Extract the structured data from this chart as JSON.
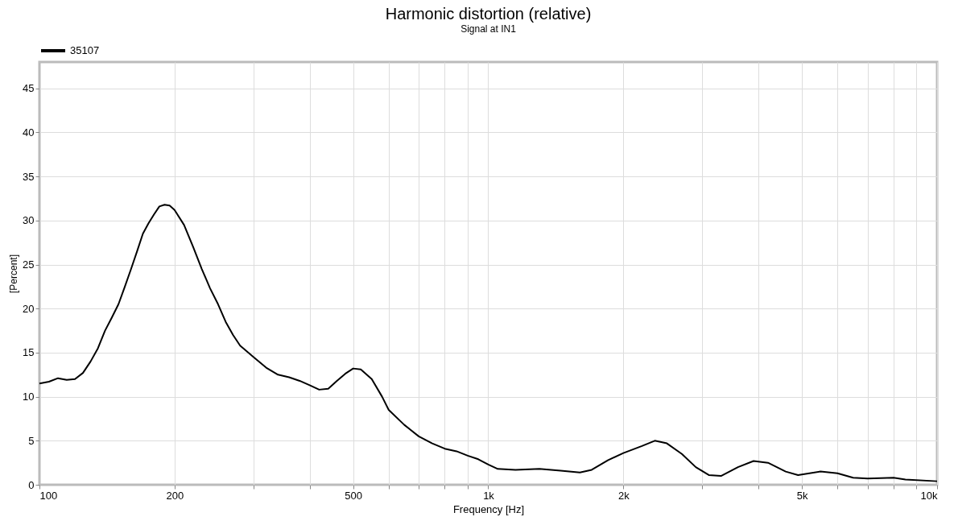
{
  "chart_data": {
    "type": "line",
    "title": "Harmonic distortion (relative)",
    "subtitle": "Signal at IN1",
    "xlabel": "Frequency [Hz]",
    "ylabel": "[Percent]",
    "log": "x",
    "grid": true,
    "legend": "top left",
    "line_style": "solid",
    "marker": "none",
    "xlim": [
      100,
      10000
    ],
    "ylim": [
      0,
      48
    ],
    "xticks": [
      100,
      {
        "value": 200,
        "label": "200"
      },
      {
        "value": 300,
        "label": null
      },
      {
        "value": 400,
        "label": null
      },
      500,
      {
        "value": 600,
        "label": null
      },
      {
        "value": 700,
        "label": null
      },
      {
        "value": 800,
        "label": null
      },
      {
        "value": 900,
        "label": null
      },
      {
        "value": 1000,
        "label": "1k"
      },
      {
        "value": 2000,
        "label": "2k"
      },
      {
        "value": 3000,
        "label": null
      },
      {
        "value": 4000,
        "label": null
      },
      {
        "value": 5000,
        "label": "5k"
      },
      {
        "value": 6000,
        "label": null
      },
      {
        "value": 7000,
        "label": null
      },
      {
        "value": 8000,
        "label": null
      },
      {
        "value": 9000,
        "label": null
      },
      {
        "value": 10000,
        "label": "10k"
      }
    ],
    "yticks": [
      0,
      5,
      10,
      15,
      20,
      25,
      30,
      35,
      40,
      45
    ],
    "x": [
      100,
      105,
      110,
      115,
      120,
      125,
      130,
      135,
      140,
      145,
      150,
      155,
      160,
      165,
      170,
      175,
      180,
      185,
      190,
      195,
      200,
      210,
      220,
      230,
      240,
      250,
      260,
      270,
      280,
      300,
      320,
      340,
      360,
      380,
      400,
      420,
      440,
      460,
      480,
      500,
      520,
      550,
      580,
      600,
      650,
      700,
      750,
      800,
      850,
      900,
      950,
      1000,
      1050,
      1150,
      1300,
      1450,
      1600,
      1700,
      1850,
      2000,
      2200,
      2350,
      2500,
      2700,
      2900,
      3100,
      3300,
      3600,
      3900,
      4200,
      4600,
      4900,
      5500,
      6000,
      6500,
      7000,
      8000,
      8500,
      10000
    ],
    "series": [
      {
        "name": "35107",
        "color": "#000000",
        "values": [
          11.5,
          11.7,
          12.1,
          11.9,
          12.0,
          12.7,
          14.0,
          15.5,
          17.5,
          19.0,
          20.5,
          22.5,
          24.5,
          26.5,
          28.5,
          29.7,
          30.7,
          31.6,
          31.8,
          31.7,
          31.2,
          29.5,
          27.0,
          24.5,
          22.3,
          20.5,
          18.5,
          17.0,
          15.8,
          14.5,
          13.3,
          12.5,
          12.2,
          11.8,
          11.3,
          10.8,
          10.9,
          11.8,
          12.6,
          13.2,
          13.1,
          12.0,
          10.0,
          8.5,
          6.8,
          5.5,
          4.7,
          4.1,
          3.8,
          3.3,
          2.9,
          2.3,
          1.8,
          1.7,
          1.8,
          1.6,
          1.4,
          1.7,
          2.8,
          3.6,
          4.4,
          5.0,
          4.7,
          3.5,
          2.0,
          1.1,
          1.0,
          2.0,
          2.7,
          2.5,
          1.5,
          1.1,
          1.5,
          1.3,
          0.8,
          0.7,
          0.8,
          0.6,
          0.4
        ]
      }
    ]
  }
}
